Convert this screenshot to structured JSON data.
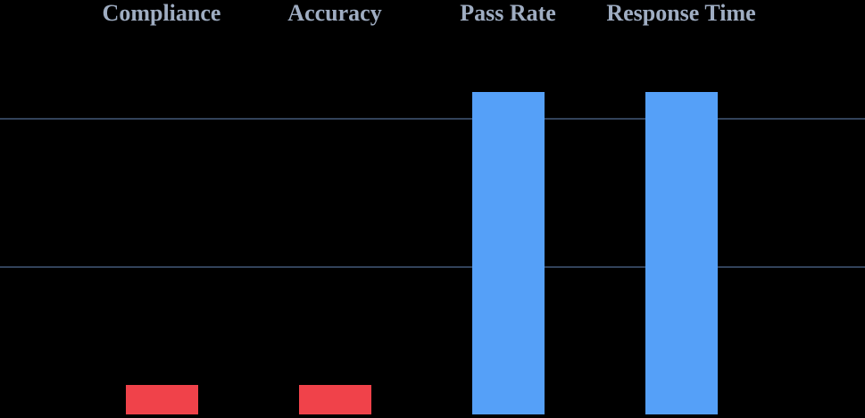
{
  "chart_data": {
    "type": "bar",
    "title": "",
    "xlabel": "",
    "ylabel": "",
    "categories": [
      "Compliance",
      "Accuracy",
      "Pass Rate",
      "Response Time"
    ],
    "values": [
      10,
      10,
      109,
      109
    ],
    "bar_colors": [
      "#F0424A",
      "#F0424A",
      "#55A0F8",
      "#55A0F8"
    ],
    "ylim": [
      0,
      120
    ],
    "gridline_values": [
      50,
      100
    ],
    "grid": "horizontal-only",
    "axis_tick_labels": "none",
    "legend_position": "none",
    "category_labels_position": "above-plot",
    "colors": {
      "background": "#000000",
      "label_text": "#9FADC2",
      "gridline": "#32425A",
      "bar_red": "#F0424A",
      "bar_blue": "#55A0F8"
    }
  }
}
